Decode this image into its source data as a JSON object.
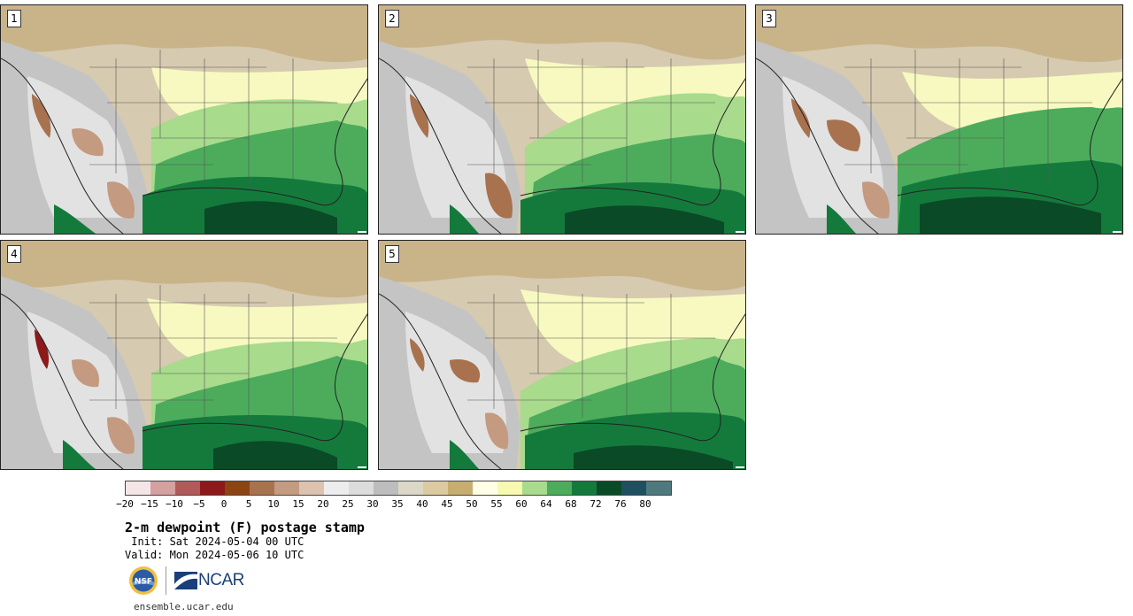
{
  "panels": [
    {
      "label": "1"
    },
    {
      "label": "2"
    },
    {
      "label": "3"
    },
    {
      "label": "4"
    },
    {
      "label": "5"
    }
  ],
  "colorbar": {
    "colors": [
      "#f4e6e6",
      "#d4a0a0",
      "#b05a5a",
      "#8c1a1a",
      "#8b4513",
      "#a8724f",
      "#c49a80",
      "#dcc3b0",
      "#ededed",
      "#dcdcdc",
      "#bdbdbd",
      "#dcd8c8",
      "#dccba0",
      "#c8ad70",
      "#ffffe8",
      "#f7f9b0",
      "#a8db8c",
      "#4cac5c",
      "#147a3c",
      "#0a4a26",
      "#1e5060",
      "#4e7a7e"
    ],
    "tick_labels": [
      "−20",
      "−15",
      "−10",
      "−5",
      "0",
      "5",
      "10",
      "15",
      "20",
      "25",
      "30",
      "35",
      "40",
      "45",
      "50",
      "55",
      "60",
      "64",
      "68",
      "72",
      "76",
      "80"
    ]
  },
  "title": "2-m dewpoint (F) postage stamp",
  "init_text": " Init: Sat 2024-05-04 00 UTC",
  "valid_text": "Valid: Mon 2024-05-06 10 UTC",
  "logos": {
    "nsf": "NSF",
    "ncar": "NCAR"
  },
  "footer_url": "ensemble.ucar.edu"
}
